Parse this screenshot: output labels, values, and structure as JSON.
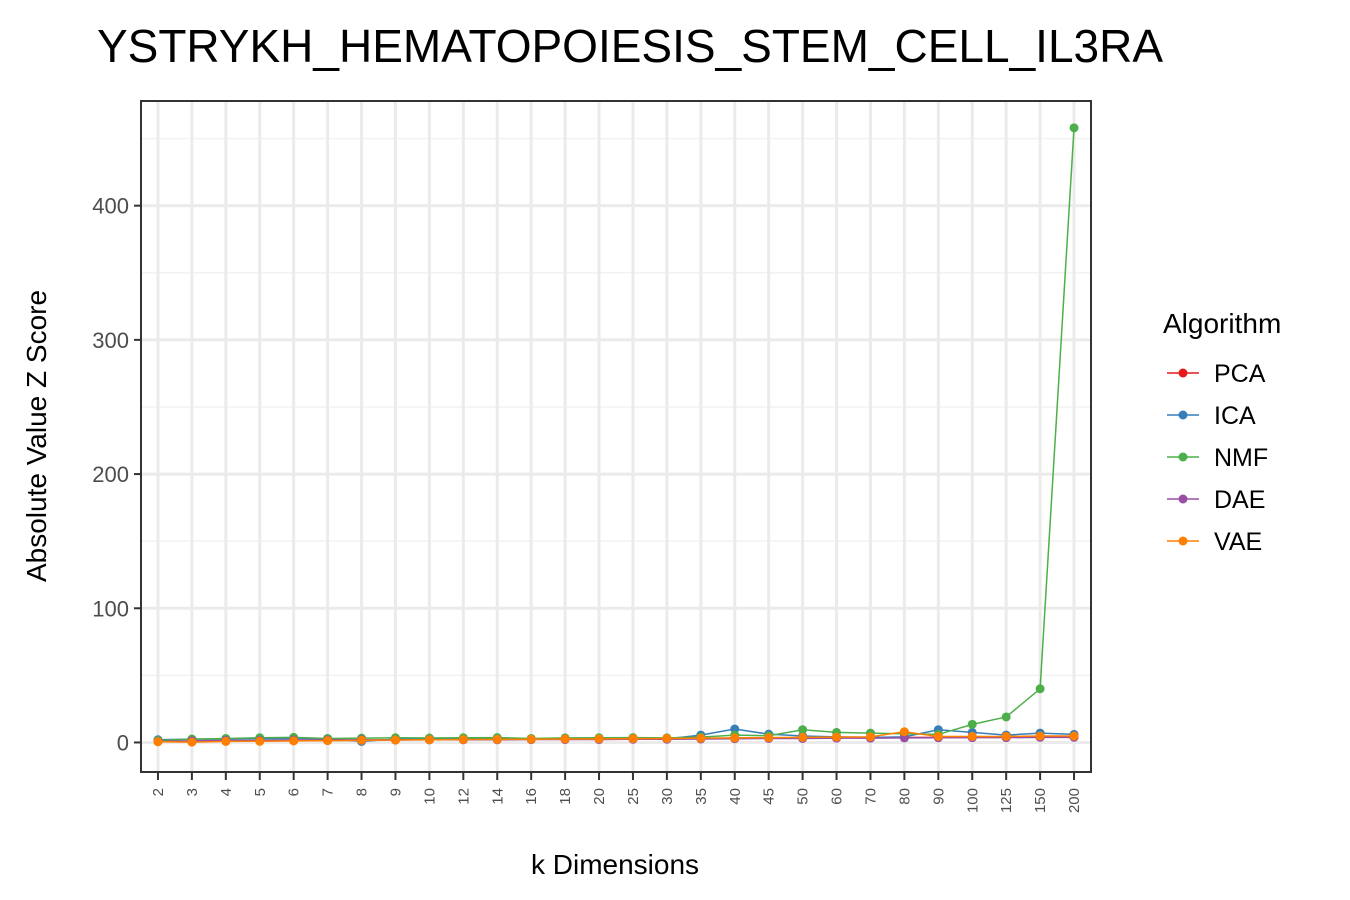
{
  "chart_data": {
    "type": "line",
    "title": "YSTRYKH_HEMATOPOIESIS_STEM_CELL_IL3RA",
    "xlabel": "k Dimensions",
    "ylabel": "Absolute Value Z Score",
    "categories": [
      "2",
      "3",
      "4",
      "5",
      "6",
      "7",
      "8",
      "9",
      "10",
      "12",
      "14",
      "16",
      "18",
      "20",
      "25",
      "30",
      "35",
      "40",
      "45",
      "50",
      "60",
      "70",
      "80",
      "90",
      "100",
      "125",
      "150",
      "200"
    ],
    "yticks": [
      0,
      100,
      200,
      300,
      400
    ],
    "ylim": [
      -22,
      478
    ],
    "grid": true,
    "legend": {
      "title": "Algorithm",
      "position": "right"
    },
    "series": [
      {
        "name": "PCA",
        "color": "#e41a1c",
        "values": [
          1.2,
          0.5,
          1.0,
          1.1,
          1.3,
          1.5,
          1.7,
          2.0,
          2.1,
          2.2,
          2.4,
          2.5,
          2.6,
          2.7,
          2.8,
          2.8,
          3.0,
          3.2,
          3.3,
          3.4,
          3.5,
          3.6,
          3.7,
          3.8,
          3.9,
          4.0,
          4.0,
          4.1
        ]
      },
      {
        "name": "ICA",
        "color": "#377eb8",
        "values": [
          2.0,
          2.5,
          2.5,
          2.8,
          3.0,
          2.8,
          0.8,
          2.5,
          2.8,
          2.5,
          2.8,
          2.3,
          2.8,
          2.6,
          2.9,
          2.7,
          5.5,
          10.0,
          6.2,
          4.8,
          4.2,
          3.8,
          4.2,
          9.5,
          7.5,
          5.5,
          7.0,
          6.0
        ]
      },
      {
        "name": "NMF",
        "color": "#4daf4a",
        "values": [
          1.5,
          2.5,
          3.0,
          3.5,
          3.8,
          3.0,
          3.2,
          3.5,
          3.3,
          3.5,
          3.6,
          3.0,
          3.4,
          3.5,
          3.6,
          3.4,
          4.0,
          5.5,
          5.0,
          9.5,
          7.5,
          7.0,
          6.5,
          6.0,
          13.5,
          19.0,
          40.0,
          458.0
        ]
      },
      {
        "name": "DAE",
        "color": "#984ea3",
        "values": [
          0.8,
          1.2,
          1.5,
          1.5,
          1.8,
          1.8,
          2.0,
          1.8,
          2.0,
          2.0,
          2.0,
          2.2,
          2.2,
          2.2,
          2.4,
          2.4,
          2.6,
          2.8,
          3.0,
          3.0,
          3.2,
          3.2,
          3.4,
          3.5,
          3.6,
          3.6,
          3.8,
          3.8
        ]
      },
      {
        "name": "VAE",
        "color": "#ff7f00",
        "values": [
          0.5,
          0.3,
          0.8,
          0.9,
          1.2,
          1.4,
          1.6,
          1.8,
          2.0,
          2.2,
          2.3,
          2.4,
          2.6,
          2.7,
          2.9,
          3.0,
          3.2,
          3.4,
          3.6,
          3.8,
          4.0,
          4.2,
          8.0,
          4.5,
          4.5,
          4.5,
          4.8,
          4.8
        ]
      }
    ]
  }
}
